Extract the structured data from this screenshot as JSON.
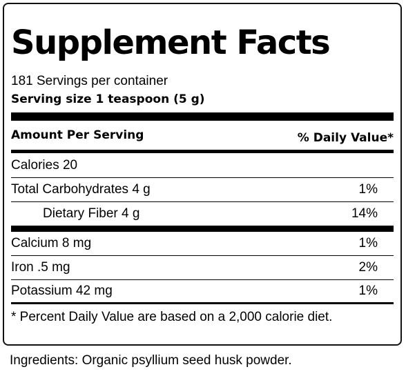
{
  "label": {
    "title": "Supplement Facts",
    "servings_per_container": "181 Servings per container",
    "serving_size": "Serving size 1 teaspoon (5 g)",
    "header": {
      "amount_per_serving": "Amount Per Serving",
      "daily_value": "% Daily Value*"
    },
    "nutrients": [
      {
        "name": "Calories 20",
        "dv": ""
      },
      {
        "name": "Total Carbohydrates 4 g",
        "dv": "1%"
      },
      {
        "name": "Dietary Fiber 4 g",
        "dv": "14%"
      },
      {
        "name": "Calcium 8 mg",
        "dv": "1%"
      },
      {
        "name": "Iron .5 mg",
        "dv": "2%"
      },
      {
        "name": "Potassium 42 mg",
        "dv": "1%"
      }
    ],
    "footnote": "* Percent Daily Value are based on a 2,000 calorie diet."
  },
  "ingredients": "Ingredients: Organic psyllium seed husk powder."
}
